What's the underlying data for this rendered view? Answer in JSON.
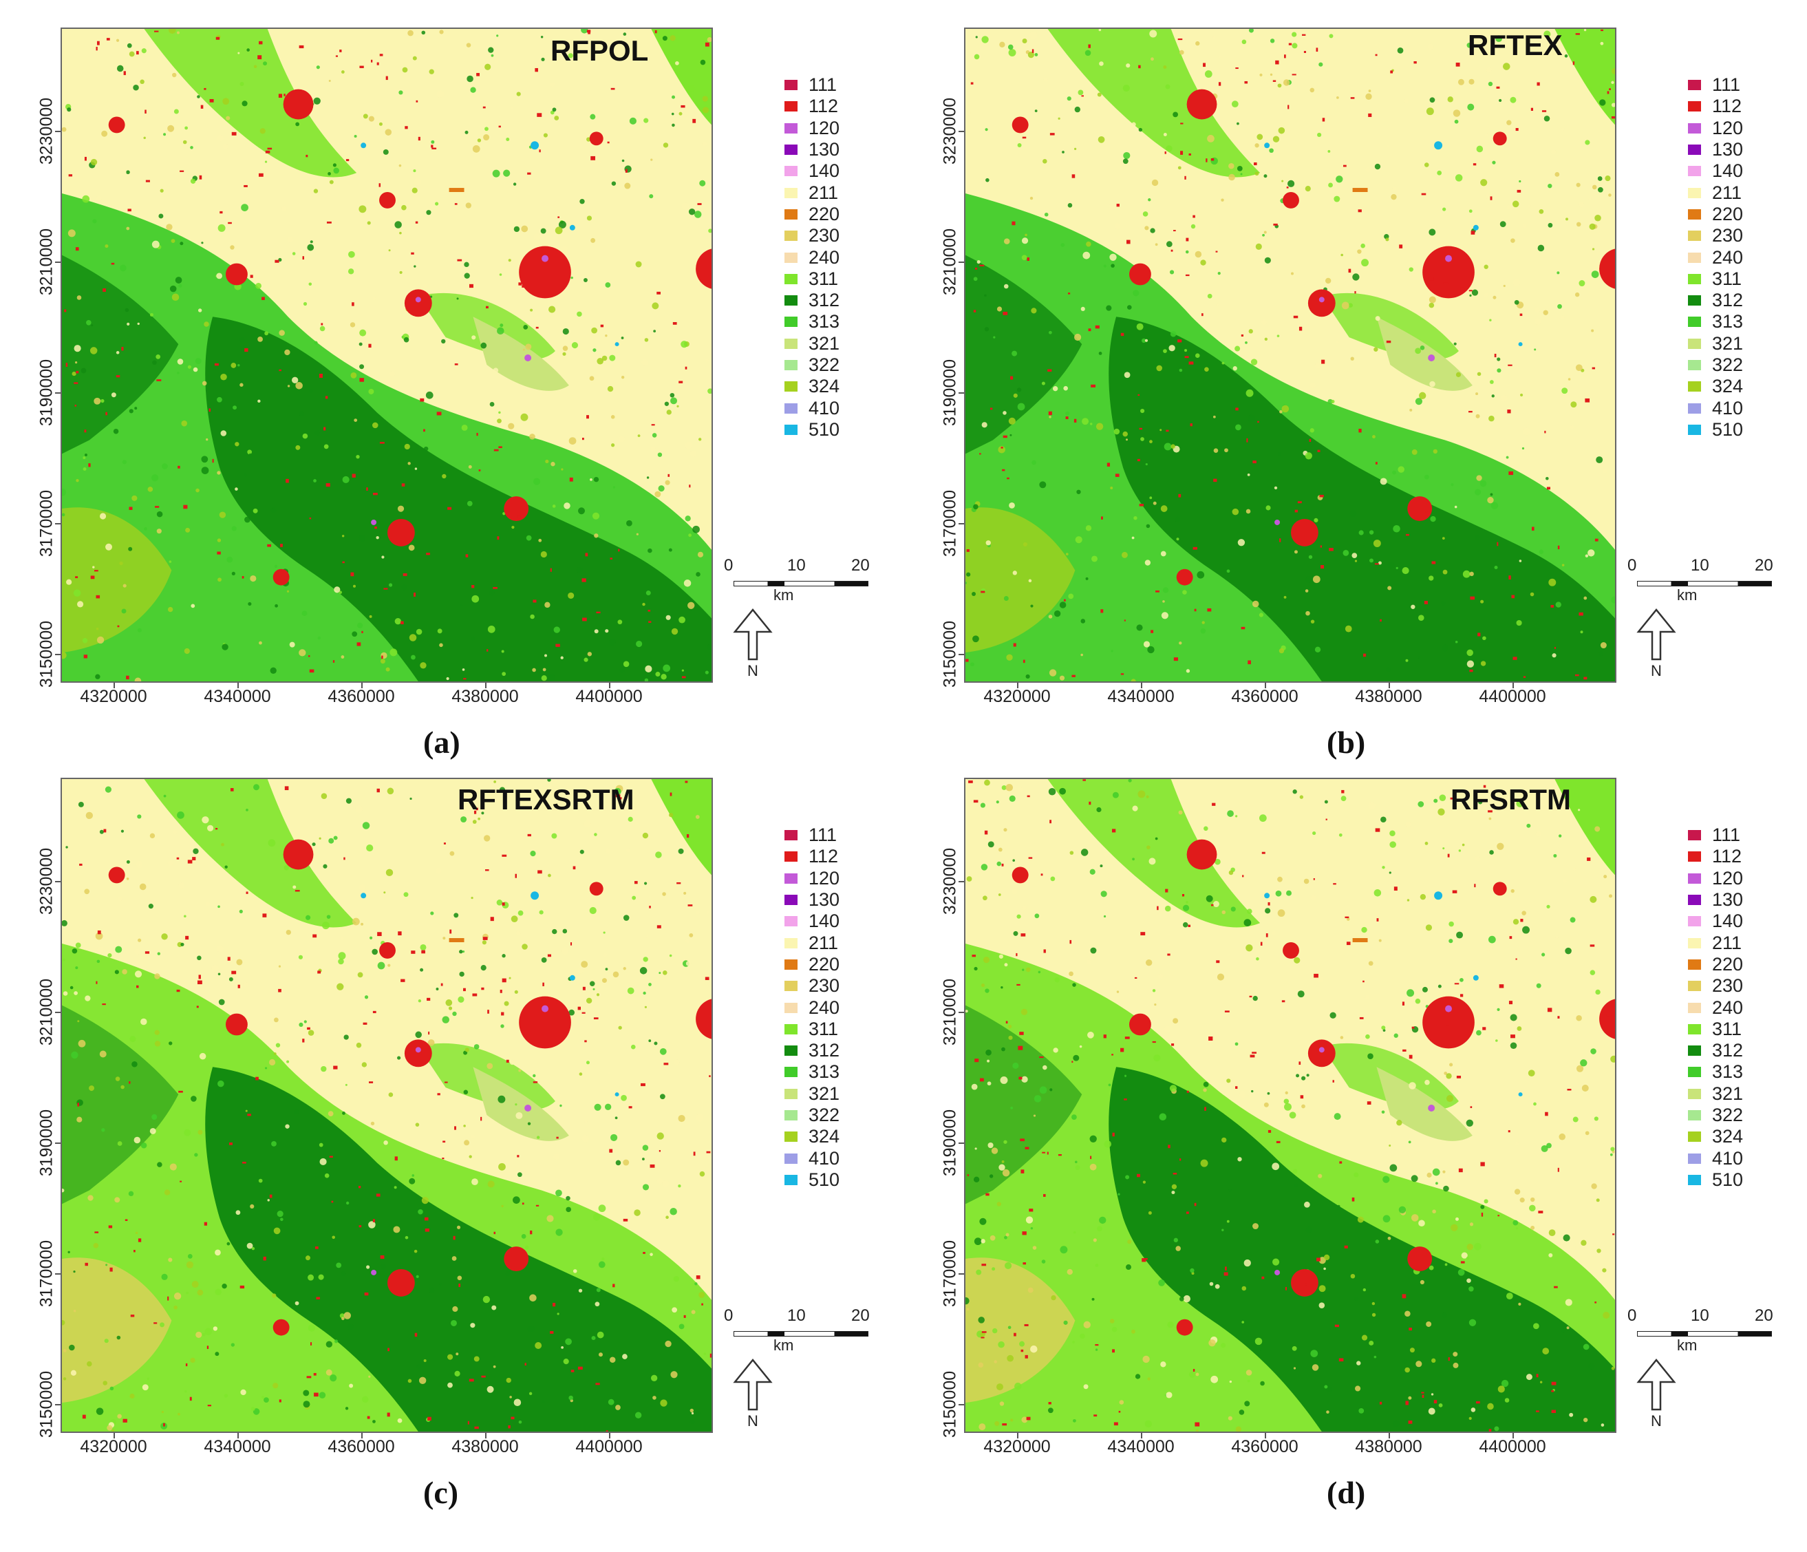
{
  "figure": {
    "panels": [
      {
        "id": "a",
        "title": "RFPOL",
        "caption": "(a)"
      },
      {
        "id": "b",
        "title": "RFTEX",
        "caption": "(b)"
      },
      {
        "id": "c",
        "title": "RFTEXSRTM",
        "caption": "(c)"
      },
      {
        "id": "d",
        "title": "RFSRTM",
        "caption": "(d)"
      }
    ],
    "x_ticks": [
      "4320000",
      "4340000",
      "4360000",
      "4380000",
      "4400000"
    ],
    "y_ticks": [
      "3230000",
      "3210000",
      "3190000",
      "3170000",
      "3150000"
    ],
    "legend": [
      {
        "code": "111",
        "color": "#c8174c"
      },
      {
        "code": "112",
        "color": "#e01b1b"
      },
      {
        "code": "120",
        "color": "#c35ad8"
      },
      {
        "code": "130",
        "color": "#8a0ab8"
      },
      {
        "code": "140",
        "color": "#f2a3ea"
      },
      {
        "code": "211",
        "color": "#fbf5b1"
      },
      {
        "code": "220",
        "color": "#e07a14"
      },
      {
        "code": "230",
        "color": "#e3cf5e"
      },
      {
        "code": "240",
        "color": "#f7dcae"
      },
      {
        "code": "311",
        "color": "#7fe52c"
      },
      {
        "code": "312",
        "color": "#138c10"
      },
      {
        "code": "313",
        "color": "#41cc2a"
      },
      {
        "code": "321",
        "color": "#c9e47a"
      },
      {
        "code": "322",
        "color": "#a6e890"
      },
      {
        "code": "324",
        "color": "#a5d11f"
      },
      {
        "code": "410",
        "color": "#9d9ee6"
      },
      {
        "code": "510",
        "color": "#19b7e3"
      }
    ],
    "scalebar": {
      "labels": [
        "0",
        "10",
        "20"
      ],
      "unit": "km"
    },
    "north_label": "N"
  }
}
